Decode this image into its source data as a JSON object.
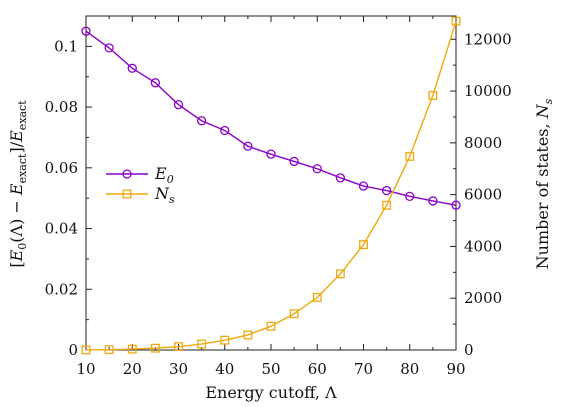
{
  "chart_data": {
    "type": "line",
    "xlabel": "Energy cutoff, Λ",
    "ylabel_left": "[E₀(Λ) − E_exact]/E_exact",
    "ylabel_right": "Number of states, N_s",
    "xlim": [
      10,
      90
    ],
    "ylim_left": [
      0,
      0.11
    ],
    "ylim_right": [
      0,
      12900
    ],
    "x_ticks": [
      10,
      20,
      30,
      40,
      50,
      60,
      70,
      80,
      90
    ],
    "y_left_ticks": [
      0,
      0.02,
      0.04,
      0.06,
      0.08,
      0.1
    ],
    "y_left_tick_labels": [
      "0",
      "0.02",
      "0.04",
      "0.06",
      "0.08",
      "0.1"
    ],
    "y_right_ticks": [
      0,
      2000,
      4000,
      6000,
      8000,
      10000,
      12000
    ],
    "y_right_tick_labels": [
      "0",
      "2000",
      "4000",
      "6000",
      "8000",
      "10000",
      "12000"
    ],
    "grid": false,
    "legend_position": "left-middle",
    "x": [
      10,
      15,
      20,
      25,
      30,
      35,
      40,
      45,
      50,
      55,
      60,
      65,
      70,
      75,
      80,
      85,
      90
    ],
    "series": [
      {
        "name": "E0",
        "axis": "left",
        "color": "#8b00c8",
        "marker": "circle",
        "values": [
          0.105,
          0.0995,
          0.0928,
          0.088,
          0.0808,
          0.0755,
          0.0723,
          0.0671,
          0.0645,
          0.0621,
          0.0597,
          0.0567,
          0.054,
          0.0525,
          0.0506,
          0.0491,
          0.0477
        ]
      },
      {
        "name": "Ns",
        "axis": "right",
        "color": "#f0a810",
        "marker": "square",
        "values": [
          3,
          12,
          35,
          70,
          130,
          230,
          380,
          580,
          920,
          1400,
          2030,
          2940,
          4070,
          5590,
          7480,
          9830,
          12700
        ]
      }
    ]
  }
}
